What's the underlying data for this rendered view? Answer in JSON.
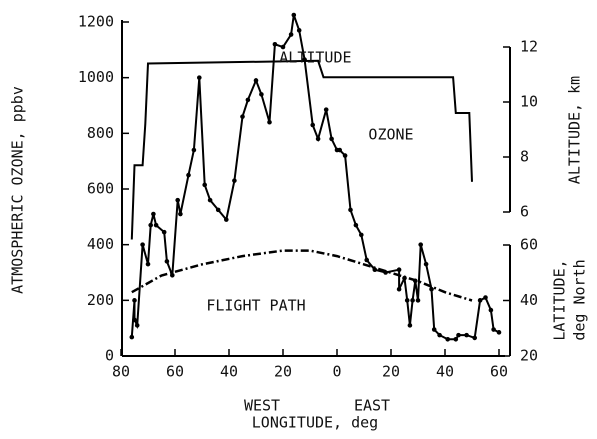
{
  "chart_data": {
    "type": "line",
    "xlabel": "LONGITUDE, deg",
    "xlabel_west": "WEST",
    "xlabel_east": "EAST",
    "ylabel": "ATMOSPHERIC OZONE, ppbv",
    "y2label": "ALTITUDE, km",
    "y3label": [
      "LATITUDE,",
      "deg North"
    ],
    "xlim": [
      -80,
      60
    ],
    "xticks": [
      {
        "value": -80,
        "label": "80"
      },
      {
        "value": -60,
        "label": "60"
      },
      {
        "value": -40,
        "label": "40"
      },
      {
        "value": -20,
        "label": "20"
      },
      0,
      20,
      40,
      60
    ],
    "ylim": [
      0,
      1200
    ],
    "yticks": [
      0,
      200,
      400,
      600,
      800,
      1000,
      1200
    ],
    "y2lim": [
      6,
      12
    ],
    "y2ticks": [
      6,
      8,
      10,
      12
    ],
    "y3lim": [
      20,
      60
    ],
    "y3ticks": [
      20,
      40,
      60
    ],
    "annotations": [
      {
        "text": "ALTITUDE",
        "x": -8,
        "axis": "y2",
        "y": 11.6
      },
      {
        "text": "OZONE",
        "x": 20,
        "axis": "y2",
        "y": 8.8
      },
      {
        "text": "FLIGHT PATH",
        "x": -30,
        "axis": "y3",
        "y": 38
      }
    ],
    "series": [
      {
        "name": "OZONE",
        "axis": "y",
        "color": "#000000",
        "markers": true,
        "dash": false,
        "x": [
          -76,
          -75,
          -75,
          -74,
          -72,
          -70,
          -69,
          -68,
          -67,
          -64,
          -63,
          -61,
          -59,
          -58,
          -55,
          -53,
          -51,
          -49,
          -47,
          -44,
          -41,
          -38,
          -35,
          -33,
          -30,
          -28,
          -25,
          -23,
          -20,
          -17,
          -16,
          -14,
          -12,
          -9,
          -7,
          -4,
          -2,
          0,
          1,
          3,
          5,
          7,
          9,
          11,
          14,
          18,
          23,
          23,
          25,
          26,
          27,
          28,
          29,
          30,
          31,
          33,
          35,
          36,
          38,
          41,
          44,
          45,
          48,
          51,
          53,
          55,
          57,
          58,
          60
        ],
        "values": [
          68,
          200,
          130,
          110,
          400,
          330,
          470,
          510,
          470,
          445,
          340,
          290,
          560,
          510,
          650,
          740,
          1000,
          615,
          560,
          525,
          490,
          630,
          860,
          920,
          990,
          940,
          840,
          1120,
          1110,
          1155,
          1225,
          1170,
          1065,
          830,
          780,
          885,
          780,
          740,
          740,
          720,
          525,
          470,
          435,
          345,
          310,
          300,
          310,
          240,
          280,
          200,
          110,
          200,
          270,
          200,
          400,
          330,
          240,
          95,
          75,
          60,
          60,
          75,
          75,
          65,
          200,
          210,
          165,
          95,
          85
        ]
      },
      {
        "name": "ALTITUDE",
        "axis": "y2",
        "color": "#000000",
        "markers": false,
        "dash": false,
        "x": [
          -76,
          -75,
          -72,
          -71,
          -70,
          -7,
          -5,
          43,
          44,
          49,
          50
        ],
        "values": [
          5.0,
          7.7,
          7.7,
          9.2,
          11.4,
          11.5,
          10.9,
          10.9,
          9.6,
          9.6,
          7.1
        ]
      },
      {
        "name": "FLIGHT PATH",
        "axis": "y3",
        "color": "#000000",
        "markers": false,
        "dash": true,
        "x": [
          -76,
          -65,
          -50,
          -35,
          -20,
          -10,
          0,
          10,
          20,
          30,
          40,
          50
        ],
        "values": [
          43,
          49,
          53,
          56,
          58,
          58,
          56,
          53,
          50,
          47,
          43,
          40
        ]
      }
    ]
  }
}
